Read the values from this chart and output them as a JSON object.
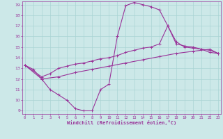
{
  "bg_color": "#cce8e8",
  "grid_color": "#aad4d4",
  "line_color": "#993399",
  "xlim": [
    -0.3,
    23.3
  ],
  "ylim": [
    8.7,
    19.3
  ],
  "yticks": [
    9,
    10,
    11,
    12,
    13,
    14,
    15,
    16,
    17,
    18,
    19
  ],
  "xticks": [
    0,
    1,
    2,
    3,
    4,
    5,
    6,
    7,
    8,
    9,
    10,
    11,
    12,
    13,
    14,
    15,
    16,
    17,
    18,
    19,
    20,
    21,
    22,
    23
  ],
  "xlabel": "Windchill (Refroidissement éolien,°C)",
  "line1_x": [
    0,
    1,
    2,
    3,
    4,
    5,
    6,
    7,
    8,
    9,
    10,
    11,
    12,
    13,
    14,
    15,
    16,
    17,
    18,
    19,
    20,
    21,
    22,
    23
  ],
  "line1_y": [
    13.3,
    12.9,
    12.0,
    11.0,
    10.5,
    10.0,
    9.2,
    9.0,
    9.0,
    11.0,
    11.5,
    16.0,
    18.9,
    19.2,
    19.0,
    18.8,
    18.5,
    17.0,
    15.5,
    15.0,
    14.9,
    14.8,
    14.5,
    14.4
  ],
  "line2_x": [
    0,
    2,
    3,
    4,
    5,
    6,
    7,
    8,
    9,
    10,
    11,
    12,
    13,
    14,
    15,
    16,
    17,
    18,
    19,
    20,
    21,
    22,
    23
  ],
  "line2_y": [
    13.3,
    12.2,
    12.5,
    13.0,
    13.2,
    13.4,
    13.5,
    13.7,
    13.9,
    14.0,
    14.2,
    14.5,
    14.7,
    14.9,
    15.0,
    15.3,
    17.0,
    15.3,
    15.1,
    15.0,
    14.8,
    14.7,
    14.4
  ],
  "line3_x": [
    0,
    2,
    4,
    6,
    8,
    10,
    12,
    14,
    16,
    18,
    20,
    22,
    23
  ],
  "line3_y": [
    13.3,
    12.0,
    12.2,
    12.6,
    12.9,
    13.2,
    13.5,
    13.8,
    14.1,
    14.4,
    14.6,
    14.8,
    14.4
  ]
}
